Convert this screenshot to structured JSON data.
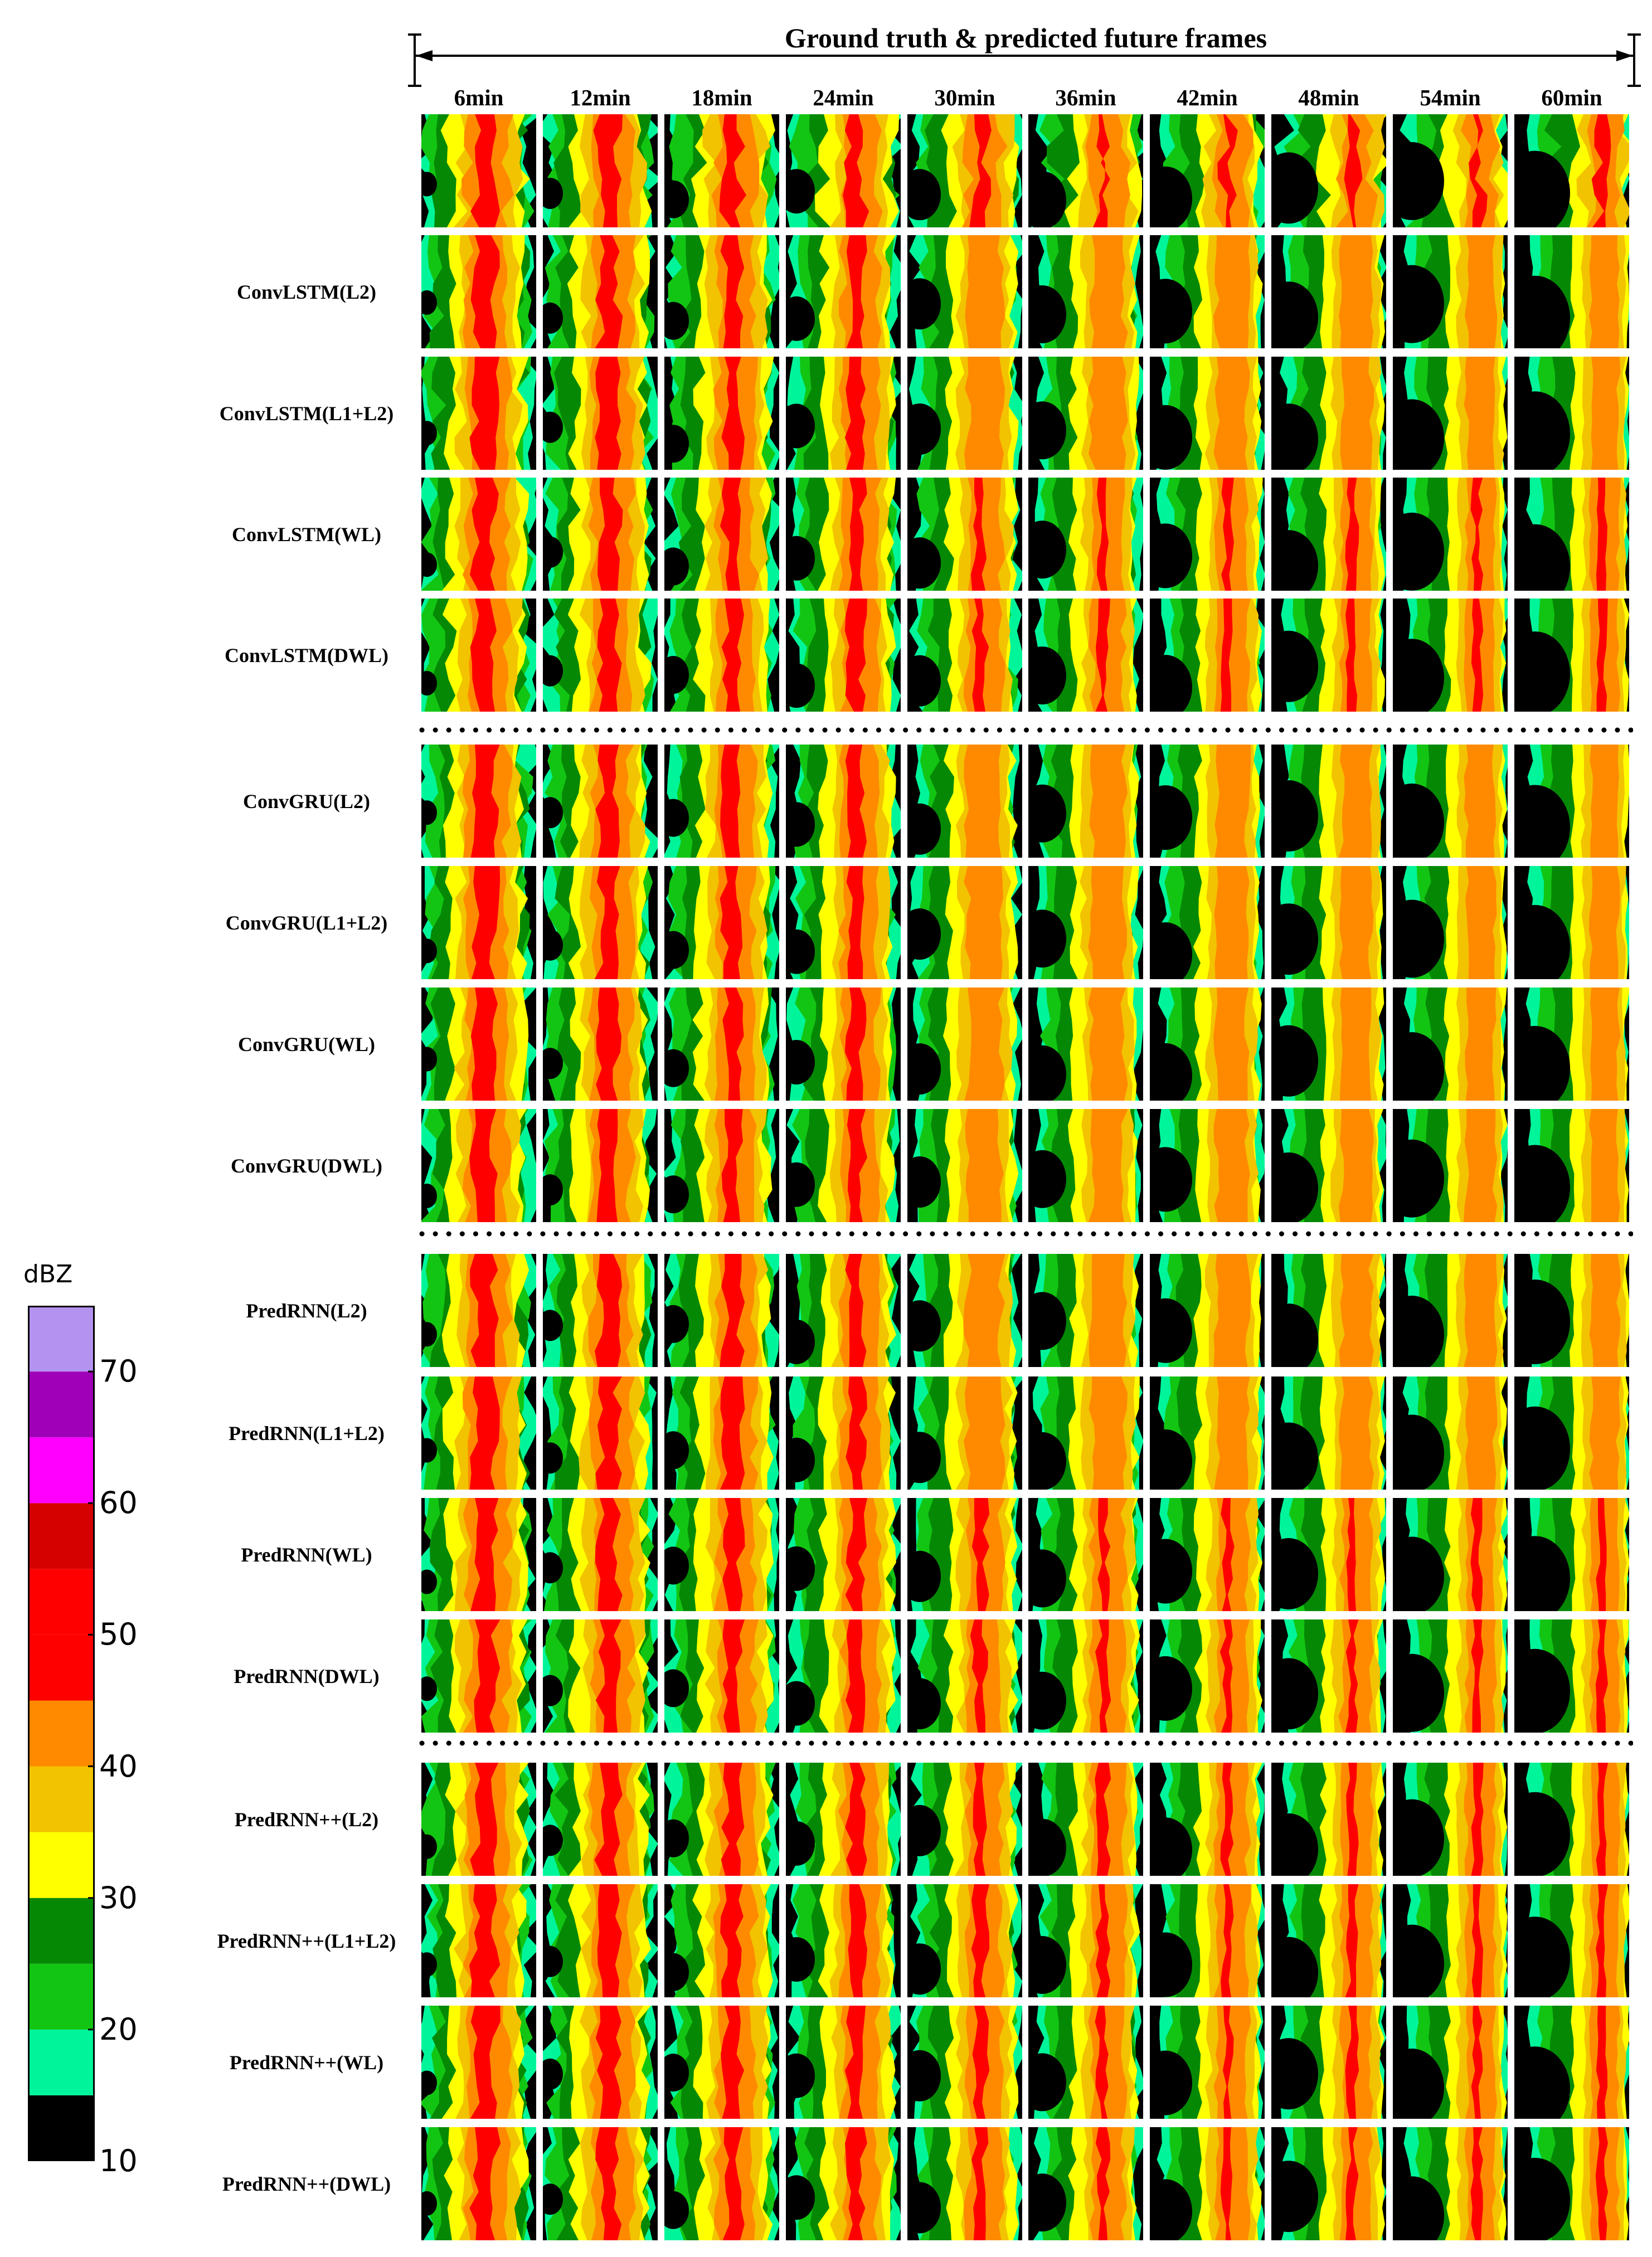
{
  "header": {
    "title": "Ground truth & predicted future frames"
  },
  "time_labels": [
    "6min",
    "12min",
    "18min",
    "24min",
    "30min",
    "36min",
    "42min",
    "48min",
    "54min",
    "60min"
  ],
  "rows": [
    {
      "label": "",
      "group": "ground-truth"
    },
    {
      "label": "ConvLSTM(L2)",
      "group": "ConvLSTM"
    },
    {
      "label": "ConvLSTM(L1+L2)",
      "group": "ConvLSTM"
    },
    {
      "label": "ConvLSTM(WL)",
      "group": "ConvLSTM"
    },
    {
      "label": "ConvLSTM(DWL)",
      "group": "ConvLSTM"
    },
    {
      "label": "ConvGRU(L2)",
      "group": "ConvGRU"
    },
    {
      "label": "ConvGRU(L1+L2)",
      "group": "ConvGRU"
    },
    {
      "label": "ConvGRU(WL)",
      "group": "ConvGRU"
    },
    {
      "label": "ConvGRU(DWL)",
      "group": "ConvGRU"
    },
    {
      "label": "PredRNN(L2)",
      "group": "PredRNN"
    },
    {
      "label": "PredRNN(L1+L2)",
      "group": "PredRNN"
    },
    {
      "label": "PredRNN(WL)",
      "group": "PredRNN"
    },
    {
      "label": "PredRNN(DWL)",
      "group": "PredRNN"
    },
    {
      "label": "PredRNN++(L2)",
      "group": "PredRNN++"
    },
    {
      "label": "PredRNN++(L1+L2)",
      "group": "PredRNN++"
    },
    {
      "label": "PredRNN++(WL)",
      "group": "PredRNN++"
    },
    {
      "label": "PredRNN++(DWL)",
      "group": "PredRNN++"
    }
  ],
  "colorbar": {
    "unit": "dBZ",
    "tick_labels": [
      "70",
      "60",
      "50",
      "40",
      "30",
      "20",
      "10"
    ],
    "tick_values": [
      70,
      60,
      50,
      40,
      30,
      20,
      10
    ],
    "bands": [
      {
        "from": 10,
        "to": 15,
        "color": "#000000"
      },
      {
        "from": 15,
        "to": 20,
        "color": "#00f59a"
      },
      {
        "from": 20,
        "to": 25,
        "color": "#13c513"
      },
      {
        "from": 25,
        "to": 30,
        "color": "#058905"
      },
      {
        "from": 30,
        "to": 35,
        "color": "#ffff00"
      },
      {
        "from": 35,
        "to": 40,
        "color": "#f2c300"
      },
      {
        "from": 40,
        "to": 45,
        "color": "#ff8a00"
      },
      {
        "from": 45,
        "to": 50,
        "color": "#ff0000"
      },
      {
        "from": 50,
        "to": 55,
        "color": "#ff0000"
      },
      {
        "from": 55,
        "to": 60,
        "color": "#d50000"
      },
      {
        "from": 60,
        "to": 65,
        "color": "#ff00ff"
      },
      {
        "from": 65,
        "to": 70,
        "color": "#a000b8"
      },
      {
        "from": 70,
        "to": 75,
        "color": "#b493f0"
      }
    ]
  },
  "colors": {
    "background": "#000000",
    "cyan": "#00f59a",
    "green": "#13c513",
    "darkgreen": "#058905",
    "yellow": "#ffff00",
    "gold": "#f2c300",
    "orange": "#ff8a00",
    "red": "#ff0000"
  }
}
